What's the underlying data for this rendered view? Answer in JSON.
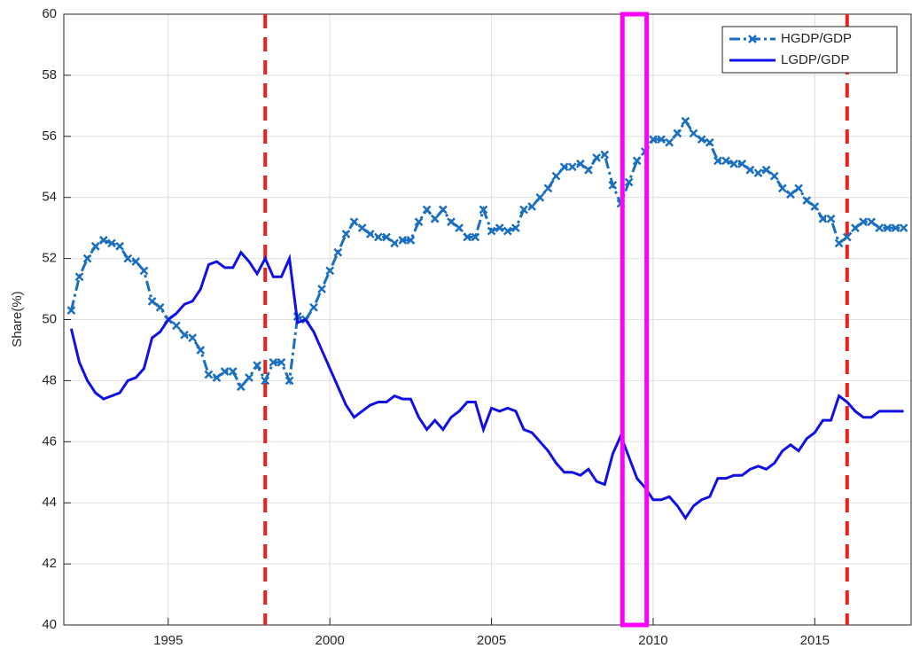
{
  "chart_data": {
    "type": "line",
    "ylabel": "Share(%)",
    "xlim": [
      1991.77,
      2017.98
    ],
    "ylim": [
      40,
      60
    ],
    "xticks": [
      1995,
      2000,
      2005,
      2010,
      2015
    ],
    "yticks": [
      40,
      42,
      44,
      46,
      48,
      50,
      52,
      54,
      56,
      58,
      60
    ],
    "grid": true,
    "legend": "upper right",
    "vlines": [
      1998,
      2016
    ],
    "vline_color": "#e8211c",
    "highlight": [
      2009.05,
      2009.8
    ],
    "highlight_color": "#ff00ff",
    "x": [
      1992,
      1992.25,
      1992.5,
      1992.75,
      1993,
      1993.25,
      1993.5,
      1993.75,
      1994,
      1994.25,
      1994.5,
      1994.75,
      1995,
      1995.25,
      1995.5,
      1995.75,
      1996,
      1996.25,
      1996.5,
      1996.75,
      1997,
      1997.25,
      1997.5,
      1997.75,
      1998,
      1998.25,
      1998.5,
      1998.75,
      1999,
      1999.25,
      1999.5,
      1999.75,
      2000,
      2000.25,
      2000.5,
      2000.75,
      2001,
      2001.25,
      2001.5,
      2001.75,
      2002,
      2002.25,
      2002.5,
      2002.75,
      2003,
      2003.25,
      2003.5,
      2003.75,
      2004,
      2004.25,
      2004.5,
      2004.75,
      2005,
      2005.25,
      2005.5,
      2005.75,
      2006,
      2006.25,
      2006.5,
      2006.75,
      2007,
      2007.25,
      2007.5,
      2007.75,
      2008,
      2008.25,
      2008.5,
      2008.75,
      2009,
      2009.25,
      2009.5,
      2009.75,
      2010,
      2010.25,
      2010.5,
      2010.75,
      2011,
      2011.25,
      2011.5,
      2011.75,
      2012,
      2012.25,
      2012.5,
      2012.75,
      2013,
      2013.25,
      2013.5,
      2013.75,
      2014,
      2014.25,
      2014.5,
      2014.75,
      2015,
      2015.25,
      2015.5,
      2015.75,
      2016,
      2016.25,
      2016.5,
      2016.75,
      2017,
      2017.25,
      2017.5,
      2017.75
    ],
    "series": [
      {
        "name": "HGDP/GDP",
        "color": "#1a6fc0",
        "style": "dashdot",
        "marker": "x",
        "values": [
          50.3,
          51.4,
          52.0,
          52.4,
          52.6,
          52.5,
          52.4,
          52.0,
          51.9,
          51.6,
          50.6,
          50.4,
          50.0,
          49.8,
          49.5,
          49.4,
          49.0,
          48.2,
          48.1,
          48.3,
          48.3,
          47.8,
          48.1,
          48.5,
          48.0,
          48.6,
          48.6,
          48.0,
          50.1,
          50.0,
          50.4,
          51.0,
          51.6,
          52.2,
          52.8,
          53.2,
          53.0,
          52.8,
          52.7,
          52.7,
          52.5,
          52.6,
          52.6,
          53.2,
          53.6,
          53.3,
          53.6,
          53.2,
          53.0,
          52.7,
          52.7,
          53.6,
          52.9,
          53.0,
          52.9,
          53.0,
          53.6,
          53.7,
          54.0,
          54.3,
          54.7,
          55.0,
          55.0,
          55.1,
          54.9,
          55.3,
          55.4,
          54.4,
          53.8,
          54.5,
          55.2,
          55.5,
          55.9,
          55.9,
          55.8,
          56.1,
          56.5,
          56.1,
          55.9,
          55.8,
          55.2,
          55.2,
          55.1,
          55.1,
          54.9,
          54.8,
          54.9,
          54.7,
          54.3,
          54.1,
          54.3,
          53.9,
          53.7,
          53.3,
          53.3,
          52.5,
          52.7,
          53.0,
          53.2,
          53.2,
          53.0,
          53.0,
          53.0,
          53.0
        ]
      },
      {
        "name": "LGDP/GDP",
        "color": "#1010e6",
        "style": "solid",
        "values": [
          49.7,
          48.6,
          48.0,
          47.6,
          47.4,
          47.5,
          47.6,
          48.0,
          48.1,
          48.4,
          49.4,
          49.6,
          50.0,
          50.2,
          50.5,
          50.6,
          51.0,
          51.8,
          51.9,
          51.7,
          51.7,
          52.2,
          51.9,
          51.5,
          52.0,
          51.4,
          51.4,
          52.0,
          49.9,
          50.0,
          49.6,
          49.0,
          48.4,
          47.8,
          47.2,
          46.8,
          47.0,
          47.2,
          47.3,
          47.3,
          47.5,
          47.4,
          47.4,
          46.8,
          46.4,
          46.7,
          46.4,
          46.8,
          47.0,
          47.3,
          47.3,
          46.4,
          47.1,
          47.0,
          47.1,
          47.0,
          46.4,
          46.3,
          46.0,
          45.7,
          45.3,
          45.0,
          45.0,
          44.9,
          45.1,
          44.7,
          44.6,
          45.6,
          46.2,
          45.5,
          44.8,
          44.5,
          44.1,
          44.1,
          44.2,
          43.9,
          43.5,
          43.9,
          44.1,
          44.2,
          44.8,
          44.8,
          44.9,
          44.9,
          45.1,
          45.2,
          45.1,
          45.3,
          45.7,
          45.9,
          45.7,
          46.1,
          46.3,
          46.7,
          46.7,
          47.5,
          47.3,
          47.0,
          46.8,
          46.8,
          47.0,
          47.0,
          47.0,
          47.0
        ]
      }
    ]
  }
}
